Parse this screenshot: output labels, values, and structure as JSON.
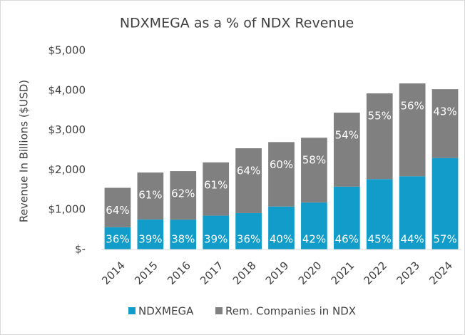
{
  "chart_data": {
    "type": "stacked_bar",
    "title": "NDXMEGA as a % of NDX Revenue",
    "y_label": "Revenue In Billions ($USD)",
    "categories": [
      "2014",
      "2015",
      "2016",
      "2017",
      "2018",
      "2019",
      "2020",
      "2021",
      "2022",
      "2023",
      "2024"
    ],
    "series": [
      {
        "name": "NDXMEGA",
        "color": "#119cc9",
        "values": [
          560,
          755,
          750,
          850,
          915,
          1080,
          1180,
          1580,
          1770,
          1840,
          2300
        ],
        "percent_labels": [
          "36%",
          "39%",
          "38%",
          "39%",
          "36%",
          "40%",
          "42%",
          "46%",
          "45%",
          "44%",
          "57%"
        ]
      },
      {
        "name": "Rem. Companies in NDX",
        "color": "#808080",
        "values": [
          990,
          1180,
          1220,
          1340,
          1630,
          1620,
          1630,
          1860,
          2155,
          2335,
          1730
        ],
        "percent_labels": [
          "64%",
          "61%",
          "62%",
          "61%",
          "64%",
          "60%",
          "58%",
          "54%",
          "55%",
          "56%",
          "43%"
        ]
      }
    ],
    "ylim": [
      0,
      5000
    ],
    "yticks": [
      {
        "value": 0,
        "label": "$-"
      },
      {
        "value": 1000,
        "label": "$1,000"
      },
      {
        "value": 2000,
        "label": "$2,000"
      },
      {
        "value": 3000,
        "label": "$3,000"
      },
      {
        "value": 4000,
        "label": "$4,000"
      },
      {
        "value": 5000,
        "label": "$5,000"
      }
    ],
    "grid": false,
    "legend": "bottom"
  }
}
